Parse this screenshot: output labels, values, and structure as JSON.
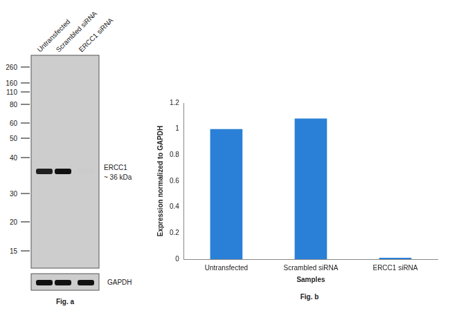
{
  "chart_data": {
    "type": "bar",
    "caption": "Fig. b",
    "categories": [
      "Untransfected",
      "Scrambled siRNA",
      "ERCC1 siRNA"
    ],
    "values": [
      1.0,
      1.08,
      0.01
    ],
    "color": "#2a80d6",
    "x_label": "Samples",
    "y_label": "Expression normalized to GAPDH",
    "ylim": [
      0,
      1.2
    ],
    "yticks": [
      0,
      0.2,
      0.4,
      0.6,
      0.8,
      1,
      1.2
    ],
    "grid": false
  },
  "blot": {
    "caption": "Fig. a",
    "lanes": [
      "Untransfected",
      "Scrambled siRNA",
      "ERCC1 siRNA"
    ],
    "markers": [
      260,
      160,
      110,
      80,
      60,
      50,
      40,
      30,
      20,
      15
    ],
    "target_label": [
      "ERCC1",
      "~ 36 kDa"
    ],
    "loading_control": "GAPDH"
  }
}
